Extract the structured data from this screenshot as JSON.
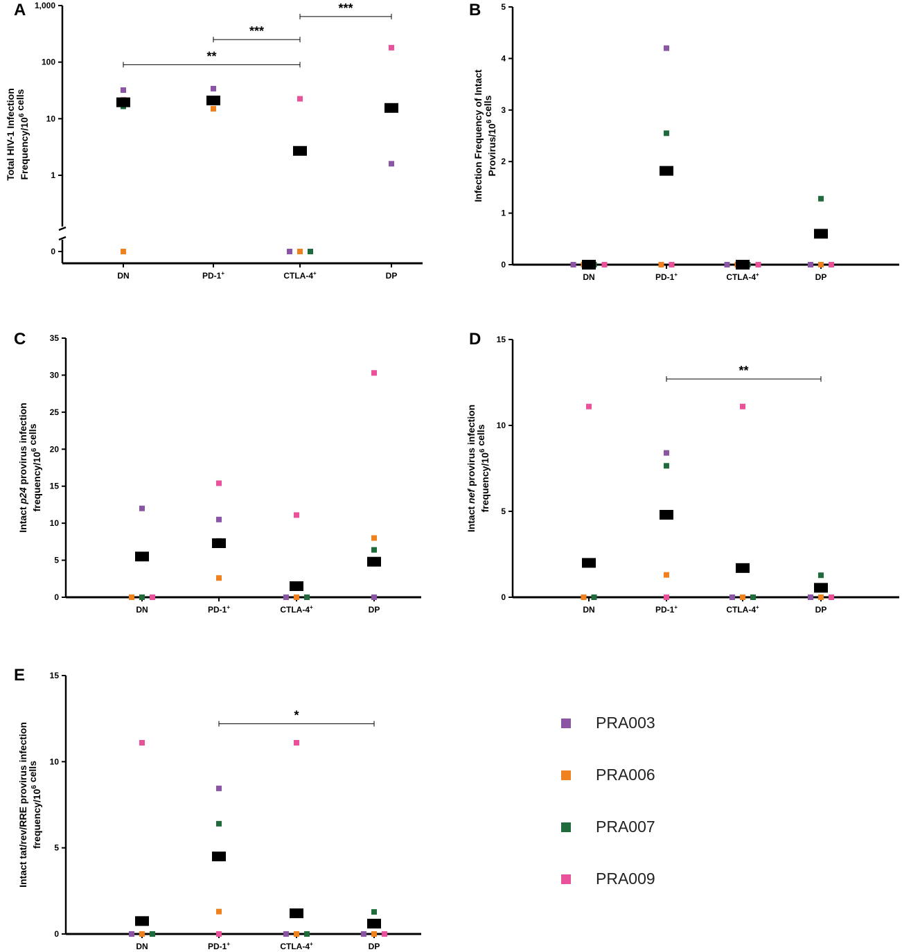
{
  "colors": {
    "PRA003": "#8b55a6",
    "PRA006": "#f0811f",
    "PRA007": "#1f6b3c",
    "PRA009": "#e9529b",
    "median": "#000000",
    "axis": "#000000"
  },
  "legend": {
    "items": [
      {
        "id": "PRA003",
        "label": "PRA003"
      },
      {
        "id": "PRA006",
        "label": "PRA006"
      },
      {
        "id": "PRA007",
        "label": "PRA007"
      },
      {
        "id": "PRA009",
        "label": "PRA009"
      }
    ]
  },
  "chart_data": [
    {
      "panel": "A",
      "type": "scatter",
      "yscale": "log-broken",
      "ylabel_lines": [
        "Total HIV-1 Infection",
        "Frequency/10^6 cells"
      ],
      "categories": [
        "DN",
        "PD-1+",
        "CTLA-4+",
        "DP"
      ],
      "yticks": [
        {
          "v": 0,
          "label": "0"
        },
        {
          "v": 1,
          "label": "1"
        },
        {
          "v": 10,
          "label": "10"
        },
        {
          "v": 100,
          "label": "100"
        },
        {
          "v": 1000,
          "label": "1,000"
        }
      ],
      "series": [
        {
          "id": "PRA003",
          "values": [
            32,
            34,
            0,
            1.6
          ]
        },
        {
          "id": "PRA006",
          "values": [
            0,
            15,
            0,
            16.5
          ]
        },
        {
          "id": "PRA007",
          "values": [
            16.5,
            19.5,
            0,
            15.5
          ]
        },
        {
          "id": "PRA009",
          "values": [
            21.5,
            20.5,
            22.5,
            180
          ]
        }
      ],
      "medians": [
        19.5,
        21,
        2.7,
        15.5
      ],
      "sig": [
        {
          "from": 0,
          "to": 2,
          "label": "**",
          "y": 90
        },
        {
          "from": 1,
          "to": 2,
          "label": "***",
          "y": 250
        },
        {
          "from": 2,
          "to": 3,
          "label": "***",
          "y": 640
        }
      ]
    },
    {
      "panel": "B",
      "type": "scatter",
      "ylim": [
        0,
        5
      ],
      "ylabel_lines": [
        "Infection Frequency of Intact",
        "Provirus/10^6 cells"
      ],
      "categories": [
        "DN",
        "PD-1+",
        "CTLA-4+",
        "DP"
      ],
      "yticks": [
        {
          "v": 0,
          "label": "0"
        },
        {
          "v": 1,
          "label": "1"
        },
        {
          "v": 2,
          "label": "2"
        },
        {
          "v": 3,
          "label": "3"
        },
        {
          "v": 4,
          "label": "4"
        },
        {
          "v": 5,
          "label": "5"
        }
      ],
      "series": [
        {
          "id": "PRA003",
          "values": [
            0,
            4.2,
            0,
            0
          ]
        },
        {
          "id": "PRA006",
          "values": [
            0,
            0,
            0,
            0
          ]
        },
        {
          "id": "PRA007",
          "values": [
            0,
            2.55,
            0,
            1.28
          ]
        },
        {
          "id": "PRA009",
          "values": [
            0,
            0,
            0,
            0
          ]
        }
      ],
      "medians": [
        0,
        1.82,
        0,
        0.6
      ],
      "sig": []
    },
    {
      "panel": "C",
      "type": "scatter",
      "ylim": [
        0,
        35
      ],
      "ylabel_lines": [
        "Intact p24 provirus infection",
        "frequency/10^6 cells"
      ],
      "italic_word": "p24",
      "categories": [
        "DN",
        "PD-1+",
        "CTLA-4+",
        "DP"
      ],
      "yticks": [
        {
          "v": 0,
          "label": "0"
        },
        {
          "v": 5,
          "label": "5"
        },
        {
          "v": 10,
          "label": "10"
        },
        {
          "v": 15,
          "label": "15"
        },
        {
          "v": 20,
          "label": "20"
        },
        {
          "v": 25,
          "label": "25"
        },
        {
          "v": 30,
          "label": "30"
        },
        {
          "v": 35,
          "label": "35"
        }
      ],
      "series": [
        {
          "id": "PRA003",
          "values": [
            12,
            10.5,
            0,
            0
          ]
        },
        {
          "id": "PRA006",
          "values": [
            0,
            2.6,
            0,
            8
          ]
        },
        {
          "id": "PRA007",
          "values": [
            0,
            7.6,
            0,
            6.4
          ]
        },
        {
          "id": "PRA009",
          "values": [
            0,
            15.4,
            11.1,
            30.3
          ]
        }
      ],
      "medians": [
        5.5,
        7.3,
        1.5,
        4.8
      ],
      "sig": []
    },
    {
      "panel": "D",
      "type": "scatter",
      "ylim": [
        0,
        15
      ],
      "ylabel_lines": [
        "Intact nef provirus infection",
        "frequency/10^6 cells"
      ],
      "italic_word": "nef",
      "categories": [
        "DN",
        "PD-1+",
        "CTLA-4+",
        "DP"
      ],
      "yticks": [
        {
          "v": 0,
          "label": "0"
        },
        {
          "v": 5,
          "label": "5"
        },
        {
          "v": 10,
          "label": "10"
        },
        {
          "v": 15,
          "label": "15"
        }
      ],
      "series": [
        {
          "id": "PRA003",
          "values": [
            2,
            8.4,
            0,
            0
          ]
        },
        {
          "id": "PRA006",
          "values": [
            0,
            1.3,
            0,
            0
          ]
        },
        {
          "id": "PRA007",
          "values": [
            0,
            7.65,
            0,
            1.28
          ]
        },
        {
          "id": "PRA009",
          "values": [
            11.1,
            0,
            11.1,
            0
          ]
        }
      ],
      "medians": [
        2,
        4.8,
        1.7,
        0.55
      ],
      "sig": [
        {
          "from": 1,
          "to": 3,
          "label": "**",
          "y": 12.7
        }
      ]
    },
    {
      "panel": "E",
      "type": "scatter",
      "ylim": [
        0,
        15
      ],
      "ylabel_lines": [
        "Intact tat/rev/RRE provirus infection",
        "frequency/10^6 cells"
      ],
      "categories": [
        "DN",
        "PD-1+",
        "CTLA-4+",
        "DP"
      ],
      "yticks": [
        {
          "v": 0,
          "label": "0"
        },
        {
          "v": 5,
          "label": "5"
        },
        {
          "v": 10,
          "label": "10"
        },
        {
          "v": 15,
          "label": "15"
        }
      ],
      "series": [
        {
          "id": "PRA003",
          "values": [
            0,
            8.45,
            0,
            0
          ]
        },
        {
          "id": "PRA006",
          "values": [
            0,
            1.3,
            0,
            0
          ]
        },
        {
          "id": "PRA007",
          "values": [
            0,
            6.4,
            0,
            1.28
          ]
        },
        {
          "id": "PRA009",
          "values": [
            11.1,
            0,
            11.1,
            0
          ]
        }
      ],
      "medians": [
        0.75,
        4.5,
        1.2,
        0.6
      ],
      "sig": [
        {
          "from": 1,
          "to": 3,
          "label": "*",
          "y": 12.2
        }
      ]
    }
  ]
}
